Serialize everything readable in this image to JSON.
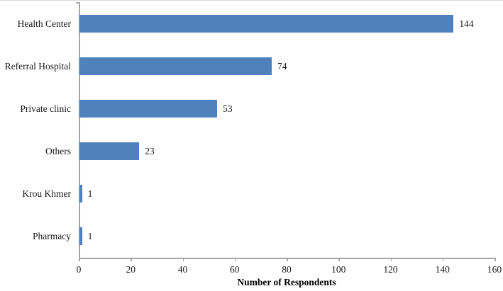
{
  "chart_data": {
    "type": "bar",
    "orientation": "horizontal",
    "title": "",
    "categories": [
      "Health Center",
      "Referral Hospital",
      "Private clinic",
      "Others",
      "Krou Khmer",
      "Pharmacy"
    ],
    "values": [
      144,
      74,
      53,
      23,
      1,
      1
    ],
    "value_labels": [
      "144",
      "74",
      "53",
      "23",
      "1",
      "1"
    ],
    "xlabel": "Number of Respondents",
    "ylabel": "",
    "xlim": [
      0,
      160
    ],
    "x_ticks": [
      0,
      20,
      40,
      60,
      80,
      100,
      120,
      140,
      160
    ],
    "grid": false,
    "legend": false,
    "bar_color": "#4f81bd",
    "axis_color": "#a6a6a6",
    "text_color": "#1a1a1a"
  }
}
